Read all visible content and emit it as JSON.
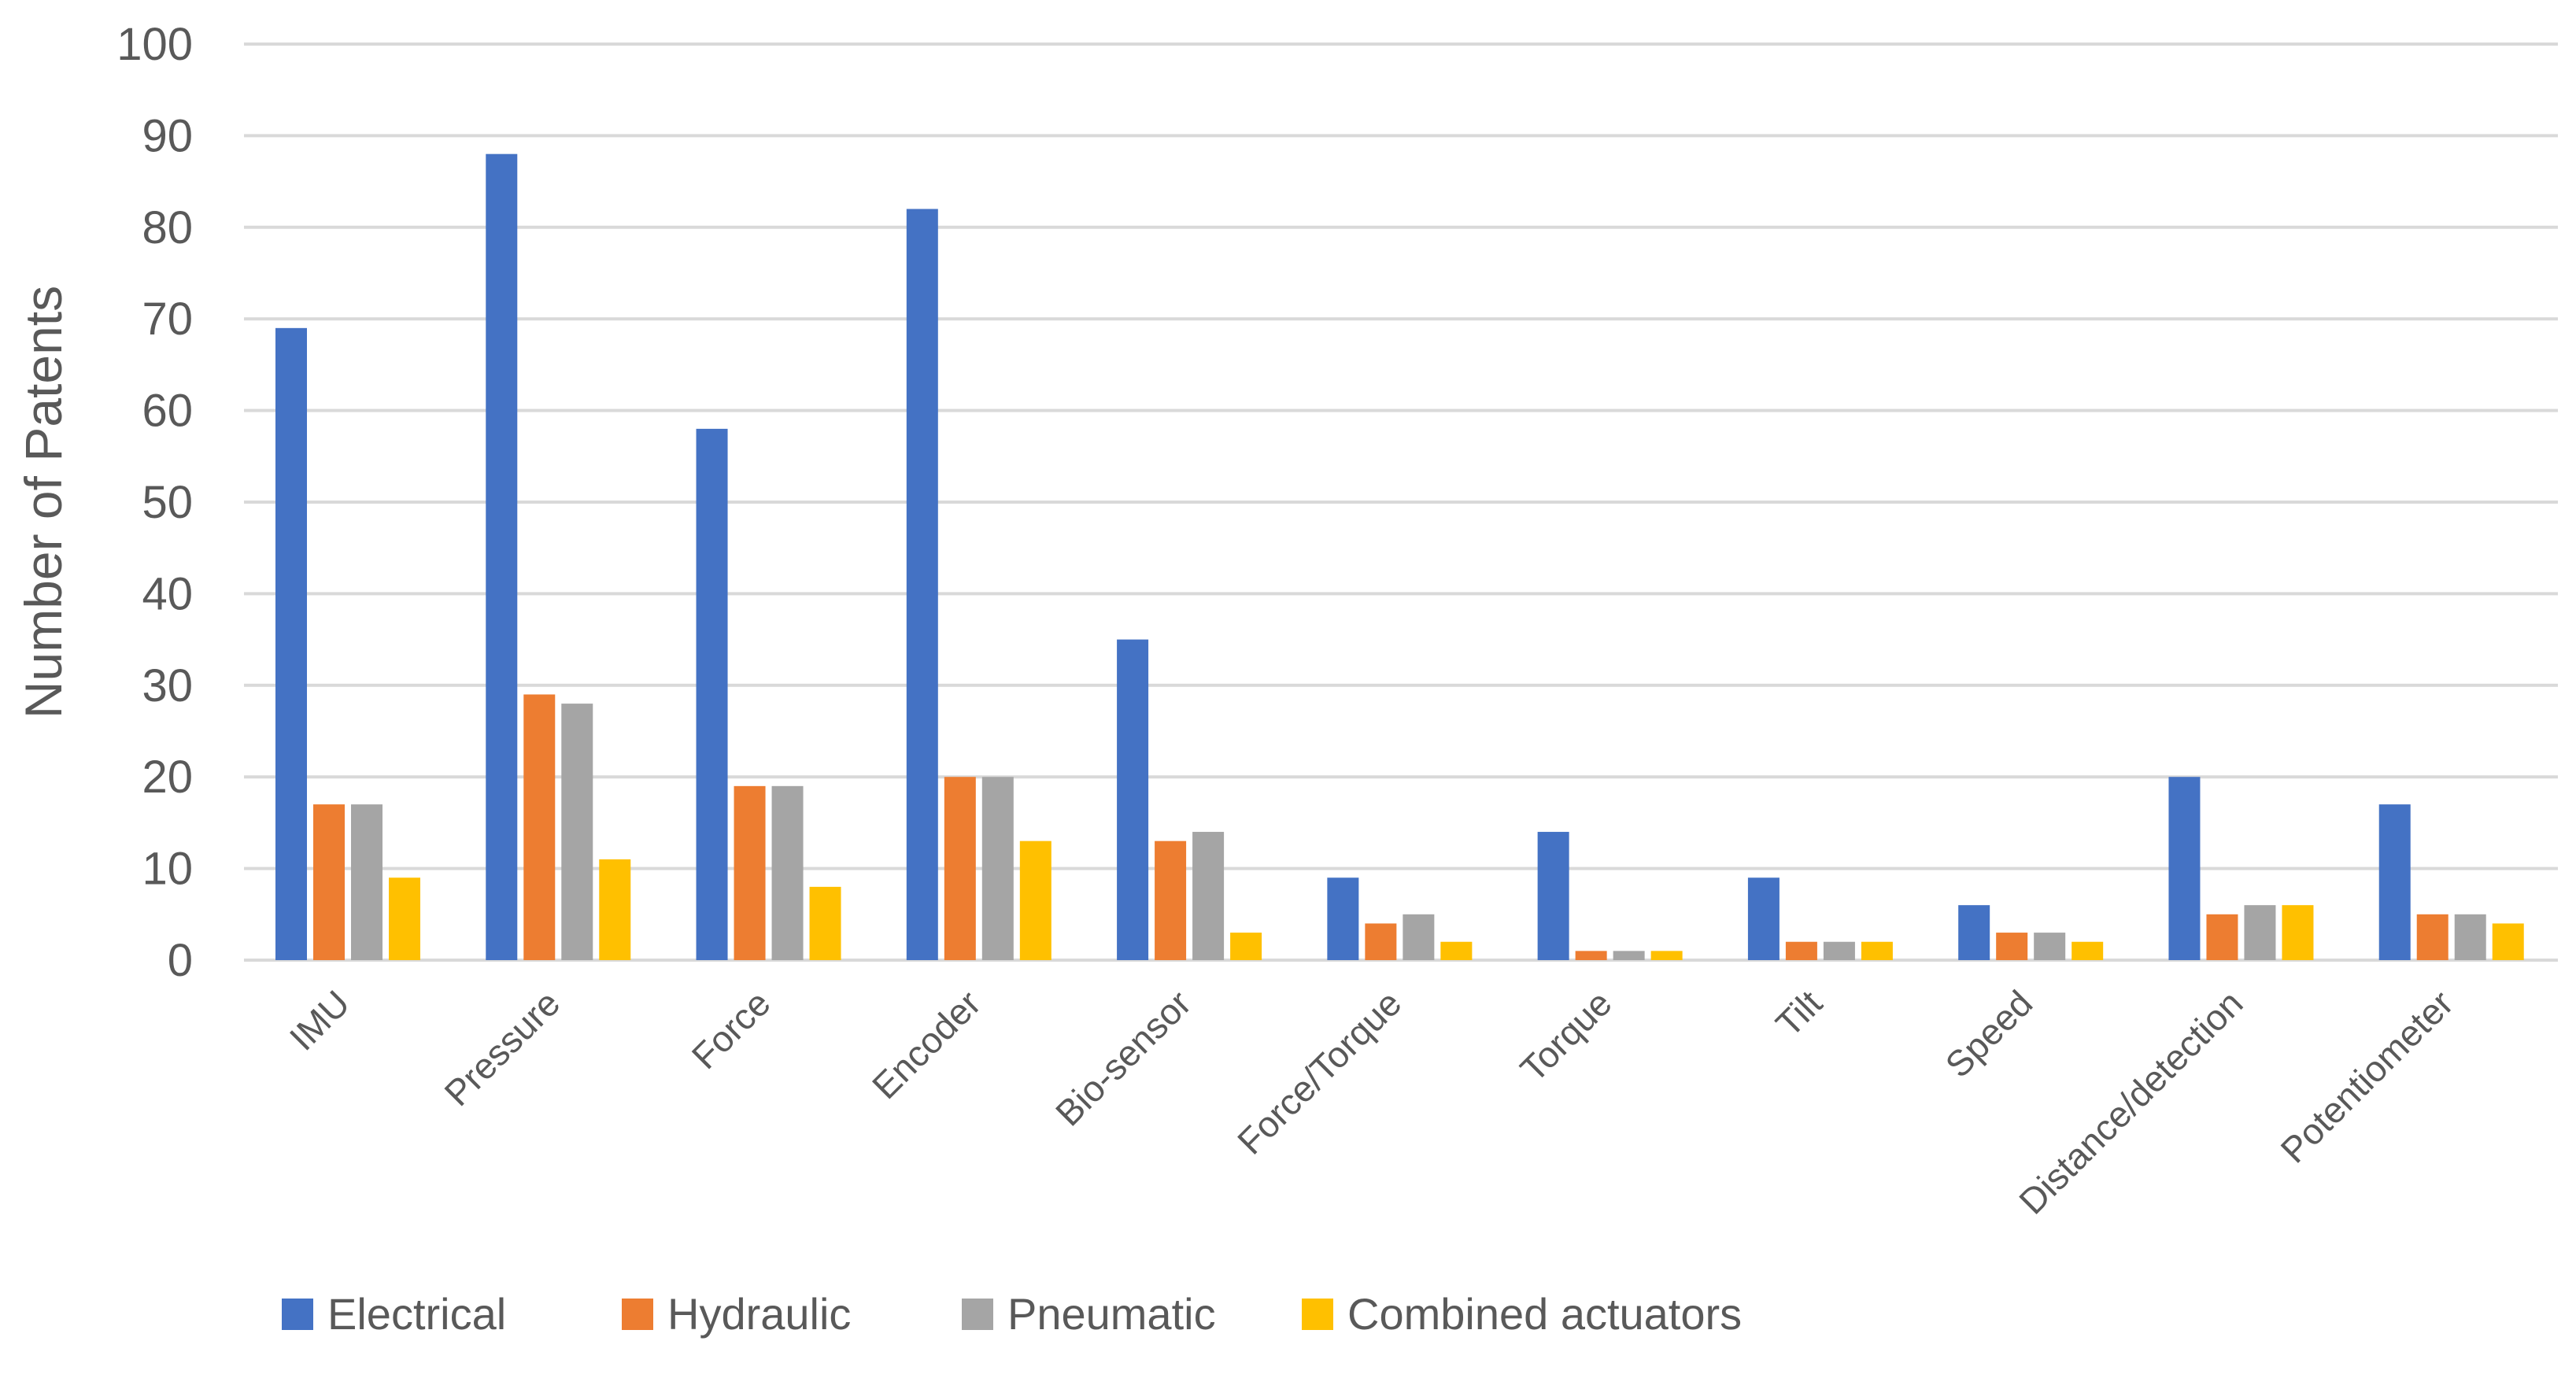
{
  "chart_data": {
    "type": "bar",
    "title": "",
    "xlabel": "",
    "ylabel": "Number of Patents",
    "ylim": [
      0,
      100
    ],
    "yticks": [
      0,
      10,
      20,
      30,
      40,
      50,
      60,
      70,
      80,
      90,
      100
    ],
    "grid": true,
    "legend_position": "bottom",
    "categories": [
      "IMU",
      "Pressure",
      "Force",
      "Encoder",
      "Bio-sensor",
      "Force/Torque",
      "Torque",
      "Tilt",
      "Speed",
      "Distance/detection",
      "Potentiometer"
    ],
    "series": [
      {
        "name": "Electrical",
        "color": "#4472C4",
        "values": [
          69,
          88,
          58,
          82,
          35,
          9,
          14,
          9,
          6,
          20,
          17
        ]
      },
      {
        "name": "Hydraulic",
        "color": "#ED7D31",
        "values": [
          17,
          29,
          19,
          20,
          13,
          4,
          1,
          2,
          3,
          5,
          5
        ]
      },
      {
        "name": "Pneumatic",
        "color": "#A5A5A5",
        "values": [
          17,
          28,
          19,
          20,
          14,
          5,
          1,
          2,
          3,
          6,
          5
        ]
      },
      {
        "name": "Combined actuators",
        "color": "#FFC000",
        "values": [
          9,
          11,
          8,
          13,
          3,
          2,
          1,
          2,
          2,
          6,
          4
        ]
      }
    ],
    "gridline_color": "#D9D9D9",
    "text_color": "#595959"
  }
}
